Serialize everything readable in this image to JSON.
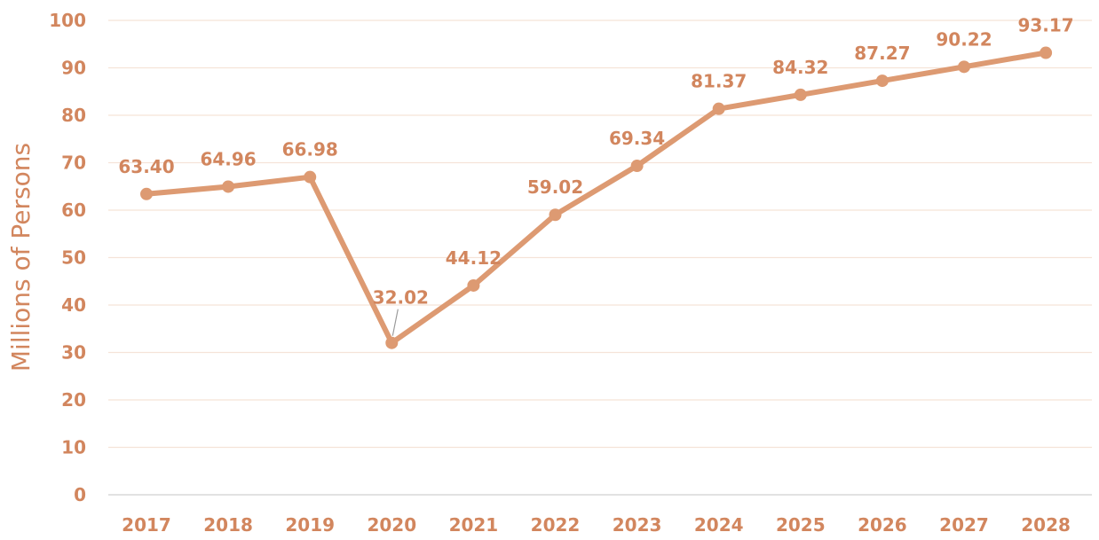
{
  "chart_data": {
    "type": "line",
    "title": "",
    "xlabel": "",
    "ylabel": "Millions of Persons",
    "categories": [
      "2017",
      "2018",
      "2019",
      "2020",
      "2021",
      "2022",
      "2023",
      "2024",
      "2025",
      "2026",
      "2027",
      "2028"
    ],
    "series": [
      {
        "values": [
          63.4,
          64.96,
          66.98,
          32.02,
          44.12,
          59.02,
          69.34,
          81.37,
          84.32,
          87.27,
          90.22,
          93.17
        ]
      }
    ],
    "data_labels": [
      "63.40",
      "64.96",
      "66.98",
      "32.02",
      "44.12",
      "59.02",
      "69.34",
      "81.37",
      "84.32",
      "87.27",
      "90.22",
      "93.17"
    ],
    "ylim": [
      0,
      100
    ],
    "yticks": [
      "0",
      "10",
      "20",
      "30",
      "40",
      "50",
      "60",
      "70",
      "80",
      "90",
      "100"
    ],
    "grid": true,
    "legend": "none",
    "colors": {
      "line": "#dd9a72",
      "text": "#d2865e",
      "grid": "#f5e3d8",
      "axis": "#d9d9d9",
      "leader": "#9a9a9a"
    }
  }
}
